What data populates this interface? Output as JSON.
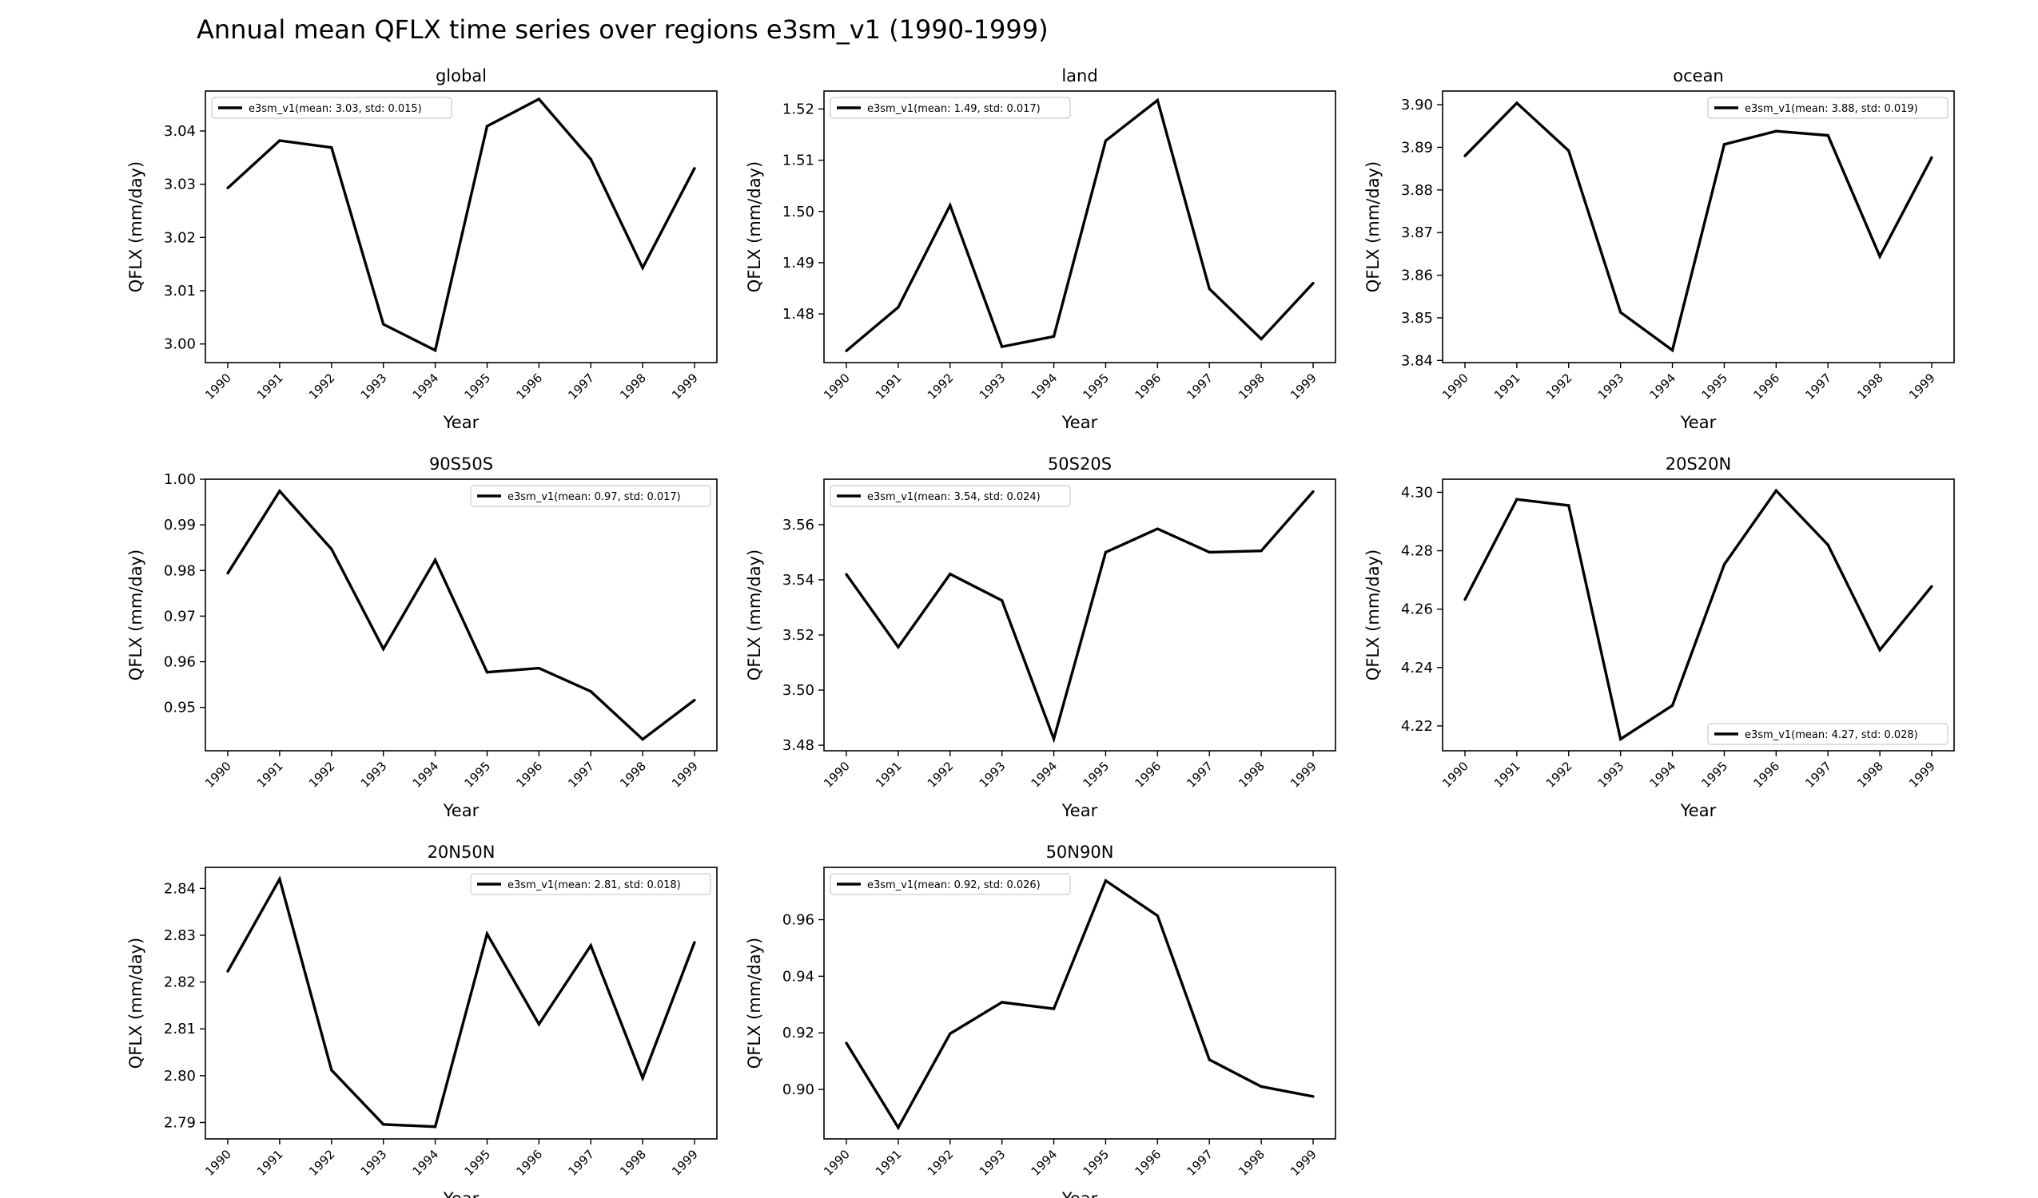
{
  "title": "Annual mean QFLX time series over regions e3sm_v1 (1990-1999)",
  "colors": {
    "line": "#000000",
    "axes": "#000000",
    "legend_border": "#cccccc",
    "background": "#ffffff"
  },
  "chart_data": [
    {
      "type": "line",
      "title": "global",
      "xlabel": "Year",
      "ylabel": "QFLX (mm/day)",
      "x": [
        "1990",
        "1991",
        "1992",
        "1993",
        "1994",
        "1995",
        "1996",
        "1997",
        "1998",
        "1999"
      ],
      "series": [
        {
          "name": "e3sm_v1(mean: 3.03, std: 0.015)",
          "values": [
            3.0293,
            3.0382,
            3.0369,
            3.0037,
            2.9988,
            3.0409,
            3.046,
            3.0347,
            3.0143,
            3.033
          ]
        }
      ],
      "ylim": [
        2.9965,
        3.0475
      ],
      "yticks": [
        "3.00",
        "3.01",
        "3.02",
        "3.03",
        "3.04"
      ],
      "legend": "upper left"
    },
    {
      "type": "line",
      "title": "land",
      "xlabel": "Year",
      "ylabel": "QFLX (mm/day)",
      "x": [
        "1990",
        "1991",
        "1992",
        "1993",
        "1994",
        "1995",
        "1996",
        "1997",
        "1998",
        "1999"
      ],
      "series": [
        {
          "name": "e3sm_v1(mean: 1.49, std: 0.017)",
          "values": [
            1.4728,
            1.4813,
            1.5012,
            1.4736,
            1.4756,
            1.5138,
            1.5217,
            1.4849,
            1.4751,
            1.486
          ]
        }
      ],
      "ylim": [
        1.4705,
        1.5235
      ],
      "yticks": [
        "1.48",
        "1.49",
        "1.50",
        "1.51",
        "1.52"
      ],
      "legend": "upper left"
    },
    {
      "type": "line",
      "title": "ocean",
      "xlabel": "Year",
      "ylabel": "QFLX (mm/day)",
      "x": [
        "1990",
        "1991",
        "1992",
        "1993",
        "1994",
        "1995",
        "1996",
        "1997",
        "1998",
        "1999"
      ],
      "series": [
        {
          "name": "e3sm_v1(mean: 3.88, std: 0.019)",
          "values": [
            3.888,
            3.9004,
            3.8892,
            3.8513,
            3.8424,
            3.8907,
            3.8938,
            3.8928,
            3.8644,
            3.8876
          ]
        }
      ],
      "ylim": [
        3.8395,
        3.9032
      ],
      "yticks": [
        "3.84",
        "3.85",
        "3.86",
        "3.87",
        "3.88",
        "3.89",
        "3.90"
      ],
      "legend": "upper right"
    },
    {
      "type": "line",
      "title": "90S50S",
      "xlabel": "Year",
      "ylabel": "QFLX (mm/day)",
      "x": [
        "1990",
        "1991",
        "1992",
        "1993",
        "1994",
        "1995",
        "1996",
        "1997",
        "1998",
        "1999"
      ],
      "series": [
        {
          "name": "e3sm_v1(mean: 0.97, std: 0.017)",
          "values": [
            0.9794,
            0.9974,
            0.9847,
            0.9628,
            0.9823,
            0.9577,
            0.9586,
            0.9535,
            0.943,
            0.9516
          ]
        }
      ],
      "ylim": [
        0.9405,
        1.0
      ],
      "yticks": [
        "0.95",
        "0.96",
        "0.97",
        "0.98",
        "0.99",
        "1.00"
      ],
      "legend": "upper right"
    },
    {
      "type": "line",
      "title": "50S20S",
      "xlabel": "Year",
      "ylabel": "QFLX (mm/day)",
      "x": [
        "1990",
        "1991",
        "1992",
        "1993",
        "1994",
        "1995",
        "1996",
        "1997",
        "1998",
        "1999"
      ],
      "series": [
        {
          "name": "e3sm_v1(mean: 3.54, std: 0.024)",
          "values": [
            3.542,
            3.5156,
            3.5421,
            3.5325,
            3.4823,
            3.55,
            3.5585,
            3.55,
            3.5505,
            3.572
          ]
        }
      ],
      "ylim": [
        3.478,
        3.5765
      ],
      "yticks": [
        "3.48",
        "3.50",
        "3.52",
        "3.54",
        "3.56"
      ],
      "legend": "upper left"
    },
    {
      "type": "line",
      "title": "20S20N",
      "xlabel": "Year",
      "ylabel": "QFLX (mm/day)",
      "x": [
        "1990",
        "1991",
        "1992",
        "1993",
        "1994",
        "1995",
        "1996",
        "1997",
        "1998",
        "1999"
      ],
      "series": [
        {
          "name": "e3sm_v1(mean: 4.27, std: 0.028)",
          "values": [
            4.2633,
            4.2976,
            4.2955,
            4.2155,
            4.227,
            4.2753,
            4.3006,
            4.282,
            4.246,
            4.2678
          ]
        }
      ],
      "ylim": [
        4.2115,
        4.3045
      ],
      "yticks": [
        "4.22",
        "4.24",
        "4.26",
        "4.28",
        "4.30"
      ],
      "legend": "lower right"
    },
    {
      "type": "line",
      "title": "20N50N",
      "xlabel": "Year",
      "ylabel": "QFLX (mm/day)",
      "x": [
        "1990",
        "1991",
        "1992",
        "1993",
        "1994",
        "1995",
        "1996",
        "1997",
        "1998",
        "1999"
      ],
      "series": [
        {
          "name": "e3sm_v1(mean: 2.81, std: 0.018)",
          "values": [
            2.8223,
            2.842,
            2.8012,
            2.7896,
            2.7891,
            2.8303,
            2.811,
            2.8278,
            2.7995,
            2.8285
          ]
        }
      ],
      "ylim": [
        2.7865,
        2.8445
      ],
      "yticks": [
        "2.79",
        "2.80",
        "2.81",
        "2.82",
        "2.83",
        "2.84"
      ],
      "legend": "upper right"
    },
    {
      "type": "line",
      "title": "50N90N",
      "xlabel": "Year",
      "ylabel": "QFLX (mm/day)",
      "x": [
        "1990",
        "1991",
        "1992",
        "1993",
        "1994",
        "1995",
        "1996",
        "1997",
        "1998",
        "1999"
      ],
      "series": [
        {
          "name": "e3sm_v1(mean: 0.92, std: 0.026)",
          "values": [
            0.9164,
            0.8865,
            0.9197,
            0.9308,
            0.9285,
            0.9738,
            0.9614,
            0.9105,
            0.901,
            0.8975
          ]
        }
      ],
      "ylim": [
        0.8825,
        0.9785
      ],
      "yticks": [
        "0.90",
        "0.92",
        "0.94",
        "0.96"
      ],
      "legend": "upper left"
    }
  ]
}
